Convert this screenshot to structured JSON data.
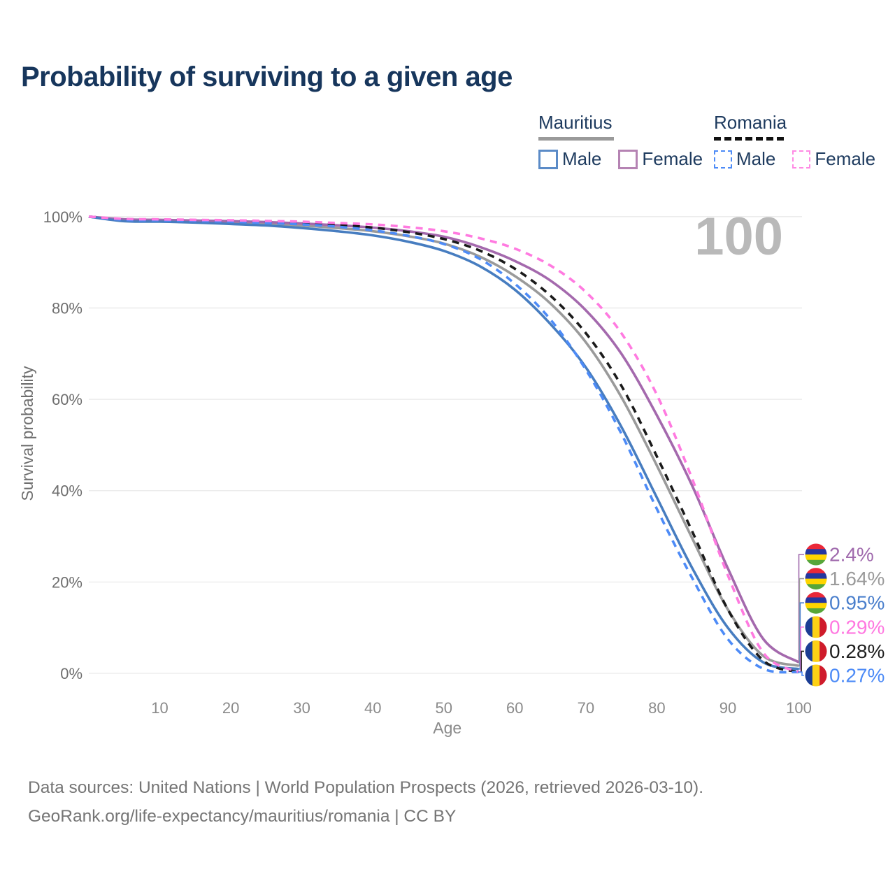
{
  "title": "Probability of surviving to a given age",
  "watermark": "100",
  "legend": {
    "groups": [
      {
        "name": "Mauritius",
        "line_style": "solid",
        "items": [
          {
            "label": "Male",
            "color": "#5b8bc7"
          },
          {
            "label": "Female",
            "color": "#b583b3"
          }
        ]
      },
      {
        "name": "Romania",
        "line_style": "dashed",
        "items": [
          {
            "label": "Male",
            "color": "#4d8bf7"
          },
          {
            "label": "Female",
            "color": "#ff8ae4"
          }
        ]
      }
    ]
  },
  "chart_data": {
    "type": "line",
    "title": "Probability of surviving to a given age",
    "xlabel": "Age",
    "ylabel": "Survival probability",
    "xlim": [
      0,
      100
    ],
    "ylim": [
      0,
      100
    ],
    "grid": "horizontal",
    "x_ticks": [
      10,
      20,
      30,
      40,
      50,
      60,
      70,
      80,
      90,
      100
    ],
    "y_ticks": [
      0,
      20,
      40,
      60,
      80,
      100
    ],
    "y_tick_labels": [
      "0%",
      "20%",
      "40%",
      "60%",
      "80%",
      "100%"
    ],
    "x": [
      0,
      5,
      10,
      15,
      20,
      25,
      30,
      35,
      40,
      45,
      50,
      55,
      60,
      65,
      70,
      75,
      80,
      85,
      90,
      95,
      100
    ],
    "series": [
      {
        "name": "Mauritius — Both sexes",
        "country": "Mauritius",
        "sex": "both",
        "color": "#9a9a9a",
        "dashed": false,
        "values": [
          100,
          99.2,
          99.1,
          98.95,
          98.7,
          98.4,
          98.05,
          97.5,
          96.8,
          95.7,
          94.1,
          91.3,
          87.0,
          81.0,
          72.5,
          60.5,
          45.5,
          29.5,
          14.0,
          3.8,
          1.64
        ]
      },
      {
        "name": "Mauritius — Female",
        "country": "Mauritius",
        "sex": "female",
        "color": "#a469ad",
        "dashed": false,
        "values": [
          100,
          99.4,
          99.3,
          99.15,
          99.0,
          98.8,
          98.5,
          98.1,
          97.6,
          96.8,
          95.6,
          93.4,
          90.3,
          86.0,
          79.5,
          70.0,
          56.5,
          41.0,
          23.0,
          7.5,
          2.4
        ]
      },
      {
        "name": "Mauritius — Male",
        "country": "Mauritius",
        "sex": "male",
        "color": "#477dc0",
        "dashed": false,
        "values": [
          100,
          99.0,
          98.9,
          98.7,
          98.4,
          98.05,
          97.5,
          96.8,
          95.9,
          94.5,
          92.5,
          89.2,
          84.0,
          76.5,
          67.0,
          54.0,
          38.5,
          23.0,
          10.0,
          2.4,
          0.95
        ]
      },
      {
        "name": "Romania — Both sexes",
        "country": "Romania",
        "sex": "both",
        "color": "#1a1a1a",
        "dashed": true,
        "values": [
          100,
          99.4,
          99.3,
          99.2,
          99.05,
          98.85,
          98.55,
          98.2,
          97.6,
          96.6,
          95.1,
          92.6,
          88.6,
          82.7,
          74.5,
          63.0,
          47.5,
          31.0,
          14.0,
          2.8,
          0.28
        ]
      },
      {
        "name": "Romania — Male",
        "country": "Romania",
        "sex": "male",
        "color": "#4d8bf7",
        "dashed": true,
        "values": [
          100,
          99.3,
          99.2,
          99.05,
          98.9,
          98.6,
          98.3,
          97.8,
          97.0,
          95.8,
          94.0,
          90.8,
          85.3,
          77.5,
          66.5,
          52.5,
          36.0,
          20.8,
          7.5,
          1.0,
          0.27
        ]
      },
      {
        "name": "Romania — Female",
        "country": "Romania",
        "sex": "female",
        "color": "#ff7ae0",
        "dashed": true,
        "values": [
          100,
          99.5,
          99.4,
          99.3,
          99.2,
          99.05,
          98.9,
          98.6,
          98.3,
          97.7,
          96.8,
          95.3,
          93.0,
          89.3,
          83.5,
          74.5,
          61.0,
          42.5,
          21.5,
          4.5,
          0.29
        ]
      }
    ],
    "end_labels": [
      {
        "text": "2.4%",
        "value": 2.4,
        "flag": "mauritius",
        "color": "#a06aad"
      },
      {
        "text": "1.64%",
        "value": 1.64,
        "flag": "mauritius",
        "color": "#9b9b9b"
      },
      {
        "text": "0.95%",
        "value": 0.95,
        "flag": "mauritius",
        "color": "#4a7fcc"
      },
      {
        "text": "0.29%",
        "value": 0.29,
        "flag": "romania",
        "color": "#ff77e0"
      },
      {
        "text": "0.28%",
        "value": 0.28,
        "flag": "romania",
        "color": "#1d1d1d"
      },
      {
        "text": "0.27%",
        "value": 0.27,
        "flag": "romania",
        "color": "#4d8bf7"
      }
    ],
    "flags": {
      "mauritius": {
        "orientation": "horizontal",
        "stripes": [
          "#ea2839",
          "#2437a0",
          "#ffd500",
          "#57a639"
        ]
      },
      "romania": {
        "orientation": "vertical",
        "stripes": [
          "#1b3d94",
          "#fcd116",
          "#cf1b2b"
        ]
      }
    }
  },
  "footer": {
    "line1": "Data sources: United Nations | World Population Prospects (2026, retrieved 2026-03-10).",
    "line2": "GeoRank.org/life-expectancy/mauritius/romania | CC BY"
  }
}
